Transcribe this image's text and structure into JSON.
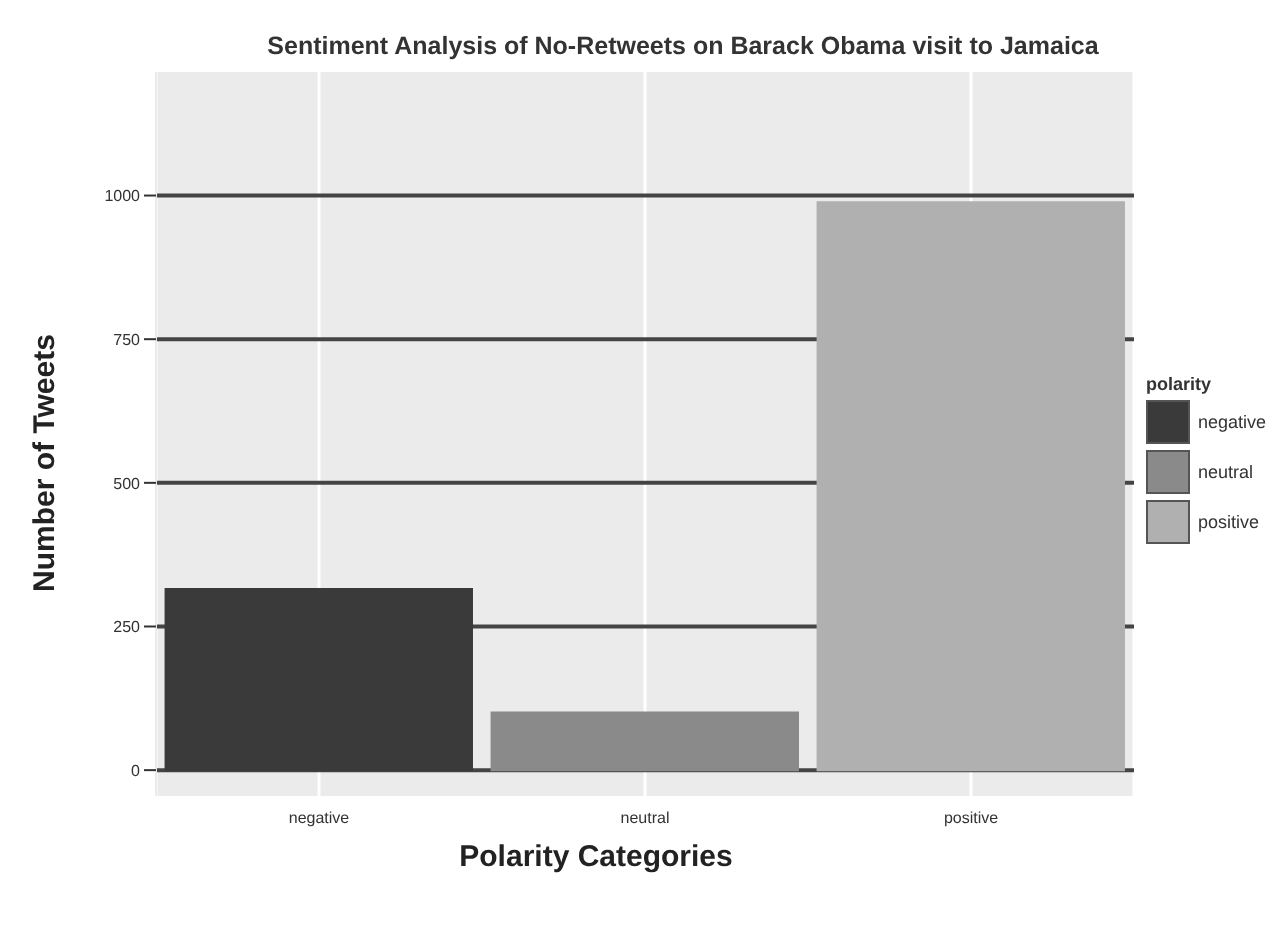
{
  "chart_data": {
    "type": "bar",
    "title": "Sentiment Analysis of No-Retweets on Barack Obama visit to Jamaica",
    "xlabel": "Polarity Categories",
    "ylabel": "Number of Tweets",
    "legend_title": "polarity",
    "categories": [
      "negative",
      "neutral",
      "positive"
    ],
    "stacked": true,
    "series": [
      {
        "name": "negative",
        "color": "#3a3a3a",
        "values": [
          315,
          null,
          null
        ]
      },
      {
        "name": "neutral",
        "color": "#8a8a8a",
        "values": [
          null,
          100,
          null
        ]
      },
      {
        "name": "positive",
        "color": "#b0b0b0",
        "values": [
          null,
          null,
          988
        ]
      }
    ],
    "ylim": [
      -45,
      1215
    ],
    "yticks": [
      0,
      250,
      500,
      750,
      1000
    ],
    "grid": true,
    "legend": "right"
  }
}
